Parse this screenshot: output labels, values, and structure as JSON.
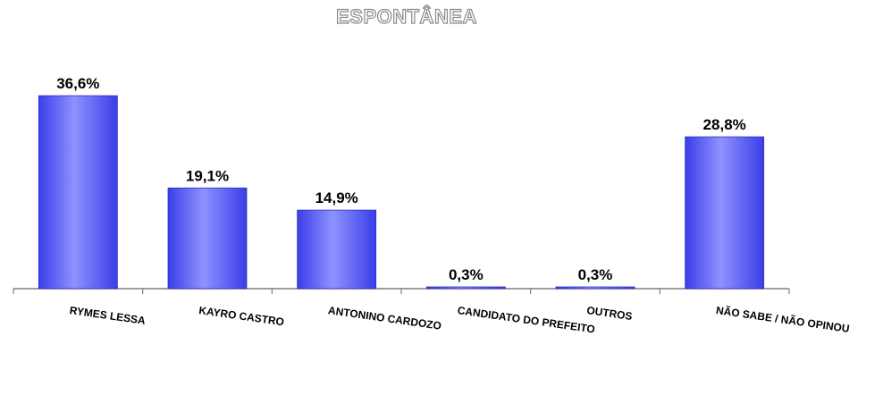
{
  "chart_data": {
    "type": "bar",
    "title": "ESPONTÂNEA",
    "categories": [
      "RYMES LESSA",
      "KAYRO CASTRO",
      "ANTONINO CARDOZO",
      "CANDIDATO DO PREFEITO",
      "OUTROS",
      "NÃO SABE / NÃO OPINOU"
    ],
    "values": [
      36.6,
      19.1,
      14.9,
      0.3,
      0.3,
      28.8
    ],
    "data_labels": [
      "36,6%",
      "19,1%",
      "14,9%",
      "0,3%",
      "0,3%",
      "28,8%"
    ],
    "xlabel": "",
    "ylabel": "",
    "ylim": [
      0,
      40
    ],
    "grid": false,
    "legend": "none",
    "colors": {
      "bar": "#4a4ef2",
      "bar_highlight": "#8e92ff",
      "bar_edge": "#2e31c4",
      "axis": "#7f7f7f",
      "label": "#000000"
    }
  }
}
